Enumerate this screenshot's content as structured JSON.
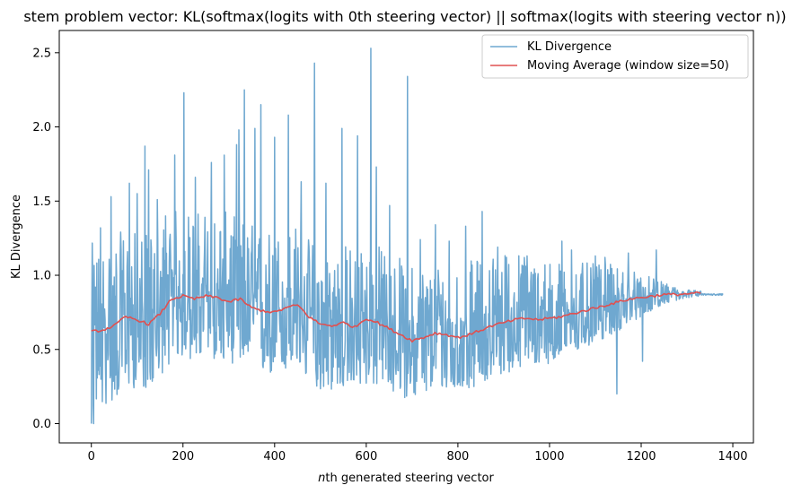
{
  "chart_data": {
    "type": "line",
    "title": "stem problem vector: KL(softmax(logits with 0th steering vector) || softmax(logits with steering vector n))",
    "xlabel_italic": "n",
    "xlabel_rest": "th generated steering vector",
    "ylabel": "KL Divergence",
    "xlim": [
      -70,
      1445
    ],
    "ylim": [
      -0.13,
      2.65
    ],
    "xticks": [
      0,
      200,
      400,
      600,
      800,
      1000,
      1200,
      1400
    ],
    "xtick_labels": [
      "0",
      "200",
      "400",
      "600",
      "800",
      "1000",
      "1200",
      "1400"
    ],
    "yticks": [
      0.0,
      0.5,
      1.0,
      1.5,
      2.0,
      2.5
    ],
    "ytick_labels": [
      "0.0",
      "0.5",
      "1.0",
      "1.5",
      "2.0",
      "2.5"
    ],
    "legend_position": "upper-right",
    "series": [
      {
        "name": "KL Divergence",
        "color": "#6fa8d0",
        "n_points": 1380,
        "start_value": 0.0,
        "end_value": 0.87,
        "spikes": [
          [
            5,
            0.0
          ],
          [
            9,
            0.92
          ],
          [
            20,
            1.32
          ],
          [
            43,
            1.53
          ],
          [
            83,
            1.62
          ],
          [
            100,
            1.55
          ],
          [
            117,
            1.87
          ],
          [
            125,
            1.71
          ],
          [
            144,
            1.51
          ],
          [
            162,
            1.4
          ],
          [
            182,
            1.81
          ],
          [
            202,
            2.23
          ],
          [
            227,
            1.66
          ],
          [
            262,
            1.76
          ],
          [
            290,
            1.81
          ],
          [
            317,
            1.88
          ],
          [
            322,
            1.98
          ],
          [
            334,
            2.25
          ],
          [
            357,
            1.99
          ],
          [
            370,
            2.15
          ],
          [
            400,
            1.93
          ],
          [
            430,
            2.08
          ],
          [
            458,
            1.63
          ],
          [
            487,
            2.43
          ],
          [
            512,
            1.62
          ],
          [
            547,
            1.99
          ],
          [
            581,
            1.94
          ],
          [
            610,
            2.53
          ],
          [
            622,
            1.73
          ],
          [
            651,
            1.47
          ],
          [
            690,
            2.34
          ],
          [
            718,
            1.24
          ],
          [
            751,
            1.34
          ],
          [
            781,
            1.23
          ],
          [
            817,
            1.33
          ],
          [
            853,
            1.43
          ],
          [
            887,
            1.19
          ],
          [
            906,
            1.12
          ],
          [
            951,
            1.13
          ],
          [
            990,
            1.07
          ],
          [
            1027,
            1.23
          ],
          [
            1048,
            1.17
          ],
          [
            1100,
            1.13
          ],
          [
            1121,
            1.12
          ],
          [
            1147,
            0.2
          ],
          [
            1172,
            1.15
          ],
          [
            1203,
            0.42
          ],
          [
            1233,
            1.17
          ]
        ],
        "envelope": [
          [
            0,
            0.55,
            0.6
          ],
          [
            150,
            0.42,
            0.6
          ],
          [
            300,
            0.42,
            0.6
          ],
          [
            450,
            0.44,
            0.55
          ],
          [
            600,
            0.45,
            0.55
          ],
          [
            750,
            0.38,
            0.5
          ],
          [
            900,
            0.35,
            0.5
          ],
          [
            1050,
            0.28,
            0.35
          ],
          [
            1150,
            0.2,
            0.25
          ],
          [
            1250,
            0.06,
            0.08
          ],
          [
            1300,
            0.03,
            0.03
          ],
          [
            1380,
            0.0,
            0.0
          ]
        ]
      },
      {
        "name": "Moving Average (window size=50)",
        "color": "#e05050",
        "window": 50,
        "points": [
          [
            0,
            0.62
          ],
          [
            25,
            0.63
          ],
          [
            50,
            0.66
          ],
          [
            75,
            0.72
          ],
          [
            100,
            0.7
          ],
          [
            125,
            0.67
          ],
          [
            150,
            0.74
          ],
          [
            175,
            0.84
          ],
          [
            200,
            0.86
          ],
          [
            225,
            0.84
          ],
          [
            250,
            0.86
          ],
          [
            275,
            0.85
          ],
          [
            300,
            0.82
          ],
          [
            325,
            0.84
          ],
          [
            350,
            0.78
          ],
          [
            375,
            0.76
          ],
          [
            400,
            0.75
          ],
          [
            425,
            0.78
          ],
          [
            450,
            0.8
          ],
          [
            475,
            0.72
          ],
          [
            500,
            0.67
          ],
          [
            525,
            0.66
          ],
          [
            550,
            0.68
          ],
          [
            575,
            0.65
          ],
          [
            600,
            0.71
          ],
          [
            625,
            0.68
          ],
          [
            650,
            0.64
          ],
          [
            675,
            0.6
          ],
          [
            700,
            0.56
          ],
          [
            725,
            0.58
          ],
          [
            750,
            0.61
          ],
          [
            775,
            0.6
          ],
          [
            800,
            0.58
          ],
          [
            825,
            0.6
          ],
          [
            850,
            0.63
          ],
          [
            875,
            0.66
          ],
          [
            900,
            0.68
          ],
          [
            925,
            0.7
          ],
          [
            950,
            0.71
          ],
          [
            975,
            0.7
          ],
          [
            1000,
            0.71
          ],
          [
            1025,
            0.72
          ],
          [
            1050,
            0.74
          ],
          [
            1075,
            0.76
          ],
          [
            1100,
            0.78
          ],
          [
            1125,
            0.8
          ],
          [
            1150,
            0.82
          ],
          [
            1175,
            0.84
          ],
          [
            1200,
            0.85
          ],
          [
            1225,
            0.86
          ],
          [
            1250,
            0.87
          ],
          [
            1275,
            0.87
          ],
          [
            1300,
            0.875
          ],
          [
            1330,
            0.88
          ]
        ]
      }
    ]
  }
}
